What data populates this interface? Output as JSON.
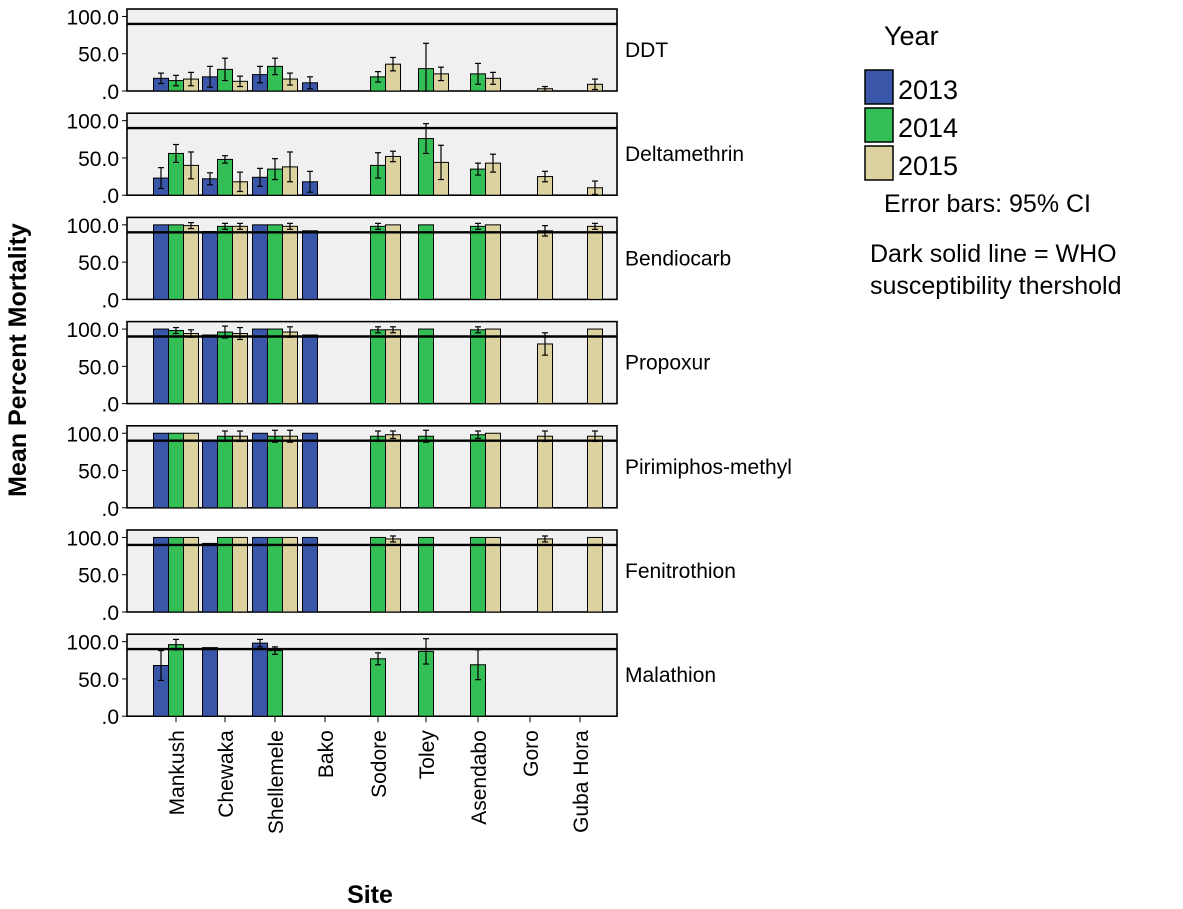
{
  "chart_data": {
    "type": "bar",
    "ylabel": "Mean Percent Mortality",
    "xlabel": "Site",
    "ylim": [
      0,
      110
    ],
    "y_ticks": [
      ".0",
      "50.0",
      "100.0"
    ],
    "reference_line": 90,
    "categories": [
      "Mankush",
      "Chewaka",
      "Shellemele",
      "Bako",
      "Sodore",
      "Toley",
      "Asendabo",
      "Goro",
      "Guba Hora"
    ],
    "legend": {
      "title": "Year",
      "position": "right",
      "entries": [
        {
          "label": "2013",
          "color": "#3a56a8"
        },
        {
          "label": "2014",
          "color": "#33bf55"
        },
        {
          "label": "2015",
          "color": "#dcd2a0"
        }
      ]
    },
    "notes": [
      "Error bars: 95% CI",
      "Dark solid line = WHO",
      "susceptibility thershold"
    ],
    "panels": [
      {
        "label": "DDT",
        "series": [
          {
            "name": "2013",
            "values": [
              17,
              19,
              22,
              11,
              null,
              null,
              null,
              null,
              null
            ],
            "err": [
              7,
              14,
              11,
              8,
              null,
              null,
              null,
              null,
              null
            ]
          },
          {
            "name": "2014",
            "values": [
              14,
              29,
              33,
              null,
              19,
              30,
              23,
              null,
              null
            ],
            "err": [
              7,
              15,
              11,
              null,
              7,
              34,
              14,
              null,
              null
            ]
          },
          {
            "name": "2015",
            "values": [
              16,
              13,
              16,
              null,
              36,
              23,
              17,
              3,
              9
            ],
            "err": [
              9,
              7,
              8,
              null,
              9,
              9,
              8,
              3,
              7
            ]
          }
        ]
      },
      {
        "label": "Deltamethrin",
        "series": [
          {
            "name": "2013",
            "values": [
              23,
              22,
              24,
              18,
              null,
              null,
              null,
              null,
              null
            ],
            "err": [
              14,
              8,
              12,
              14,
              null,
              null,
              null,
              null,
              null
            ]
          },
          {
            "name": "2014",
            "values": [
              56,
              48,
              35,
              null,
              40,
              76,
              35,
              null,
              null
            ],
            "err": [
              12,
              5,
              14,
              null,
              17,
              20,
              8,
              null,
              null
            ]
          },
          {
            "name": "2015",
            "values": [
              40,
              18,
              38,
              null,
              52,
              44,
              43,
              25,
              10
            ],
            "err": [
              18,
              13,
              20,
              null,
              7,
              23,
              12,
              7,
              9
            ]
          }
        ]
      },
      {
        "label": "Bendiocarb",
        "series": [
          {
            "name": "2013",
            "values": [
              100,
              91,
              100,
              92,
              null,
              null,
              null,
              null,
              null
            ],
            "err": [
              0,
              0,
              0,
              0,
              null,
              null,
              null,
              null,
              null
            ]
          },
          {
            "name": "2014",
            "values": [
              100,
              98,
              100,
              null,
              98,
              100,
              98,
              null,
              null
            ],
            "err": [
              0,
              4,
              0,
              null,
              4,
              0,
              4,
              null,
              null
            ]
          },
          {
            "name": "2015",
            "values": [
              99,
              98,
              98,
              null,
              100,
              null,
              100,
              92,
              98
            ],
            "err": [
              4,
              4,
              4,
              null,
              0,
              null,
              0,
              7,
              4
            ]
          }
        ]
      },
      {
        "label": "Propoxur",
        "series": [
          {
            "name": "2013",
            "values": [
              100,
              92,
              100,
              92,
              null,
              null,
              null,
              null,
              null
            ],
            "err": [
              0,
              0,
              0,
              0,
              null,
              null,
              null,
              null,
              null
            ]
          },
          {
            "name": "2014",
            "values": [
              98,
              96,
              100,
              null,
              99,
              100,
              99,
              null,
              null
            ],
            "err": [
              4,
              8,
              0,
              null,
              4,
              0,
              4,
              null,
              null
            ]
          },
          {
            "name": "2015",
            "values": [
              94,
              94,
              96,
              null,
              99,
              null,
              100,
              80,
              100
            ],
            "err": [
              5,
              8,
              7,
              null,
              4,
              null,
              0,
              15,
              0
            ]
          }
        ]
      },
      {
        "label": "Pirimiphos-methyl",
        "series": [
          {
            "name": "2013",
            "values": [
              100,
              91,
              100,
              100,
              null,
              null,
              null,
              null,
              null
            ],
            "err": [
              0,
              0,
              0,
              0,
              null,
              null,
              null,
              null,
              null
            ]
          },
          {
            "name": "2014",
            "values": [
              100,
              96,
              96,
              null,
              96,
              96,
              98,
              null,
              null
            ],
            "err": [
              0,
              7,
              8,
              null,
              7,
              8,
              5,
              null,
              null
            ]
          },
          {
            "name": "2015",
            "values": [
              100,
              96,
              96,
              null,
              98,
              null,
              100,
              96,
              96
            ],
            "err": [
              0,
              7,
              8,
              null,
              5,
              null,
              0,
              7,
              7
            ]
          }
        ]
      },
      {
        "label": "Fenitrothion",
        "series": [
          {
            "name": "2013",
            "values": [
              100,
              92,
              100,
              100,
              null,
              null,
              null,
              null,
              null
            ],
            "err": [
              0,
              0,
              0,
              0,
              null,
              null,
              null,
              null,
              null
            ]
          },
          {
            "name": "2014",
            "values": [
              100,
              100,
              100,
              null,
              100,
              100,
              100,
              null,
              null
            ],
            "err": [
              0,
              0,
              0,
              null,
              0,
              0,
              0,
              null,
              null
            ]
          },
          {
            "name": "2015",
            "values": [
              100,
              100,
              100,
              null,
              98,
              null,
              100,
              98,
              100
            ],
            "err": [
              0,
              0,
              0,
              null,
              4,
              null,
              0,
              4,
              0
            ]
          }
        ]
      },
      {
        "label": "Malathion",
        "series": [
          {
            "name": "2013",
            "values": [
              68,
              92,
              98,
              null,
              null,
              null,
              null,
              null,
              null
            ],
            "err": [
              20,
              0,
              5,
              null,
              null,
              null,
              null,
              null,
              null
            ]
          },
          {
            "name": "2014",
            "values": [
              96,
              null,
              88,
              null,
              77,
              87,
              69,
              null,
              null
            ],
            "err": [
              7,
              null,
              5,
              null,
              8,
              17,
              20,
              null,
              null
            ]
          },
          {
            "name": "2015",
            "values": [
              null,
              null,
              null,
              null,
              null,
              null,
              null,
              null,
              null
            ],
            "err": [
              null,
              null,
              null,
              null,
              null,
              null,
              null,
              null,
              null
            ]
          }
        ]
      }
    ]
  }
}
